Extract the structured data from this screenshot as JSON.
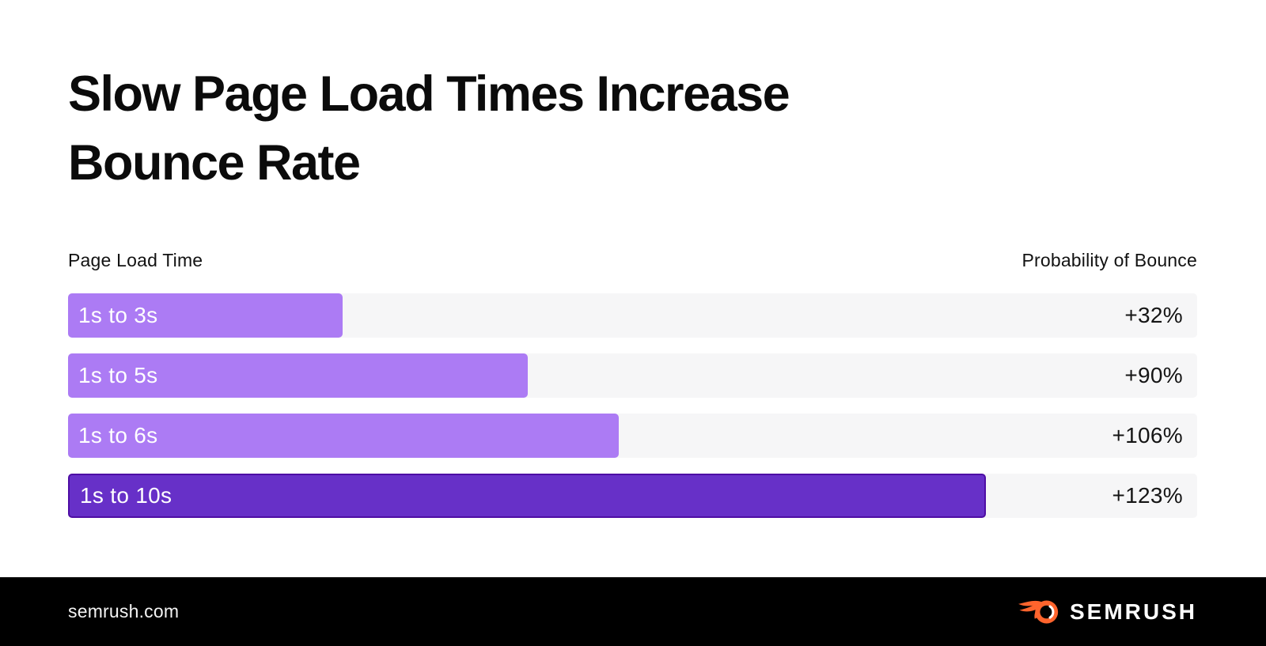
{
  "page": {
    "title_line1": "Slow Page Load Times Increase",
    "title_line2": "Bounce Rate"
  },
  "chart": {
    "left_header": "Page Load Time",
    "right_header": "Probability of Bounce"
  },
  "chart_data": {
    "type": "bar",
    "orientation": "horizontal",
    "title": "Slow Page Load Times Increase Bounce Rate",
    "xlabel": "Page Load Time",
    "ylabel": "Probability of Bounce",
    "categories": [
      "1s to 3s",
      "1s to 5s",
      "1s to 6s",
      "1s to 10s"
    ],
    "values": [
      32,
      90,
      106,
      123
    ],
    "value_labels": [
      "+32%",
      "+90%",
      "+106%",
      "+123%"
    ],
    "grid": false,
    "legend": false,
    "track_color": "#F6F6F7",
    "rows": [
      {
        "label": "1s to 3s",
        "value": 32,
        "value_label": "+32%",
        "width_pct": 24.3,
        "fill": "#AC7BF4"
      },
      {
        "label": "1s to 5s",
        "value": 90,
        "value_label": "+90%",
        "width_pct": 40.7,
        "fill": "#AC7BF4"
      },
      {
        "label": "1s to 6s",
        "value": 106,
        "value_label": "+106%",
        "width_pct": 48.8,
        "fill": "#AC7BF4"
      },
      {
        "label": "1s to 10s",
        "value": 123,
        "value_label": "+123%",
        "width_pct": 81.3,
        "fill": "#6730C8",
        "border": "#4E0DA4"
      }
    ]
  },
  "footer": {
    "website": "semrush.com",
    "brand": "SEMRUSH",
    "logo_color": "#FF642D",
    "background": "#000000"
  }
}
